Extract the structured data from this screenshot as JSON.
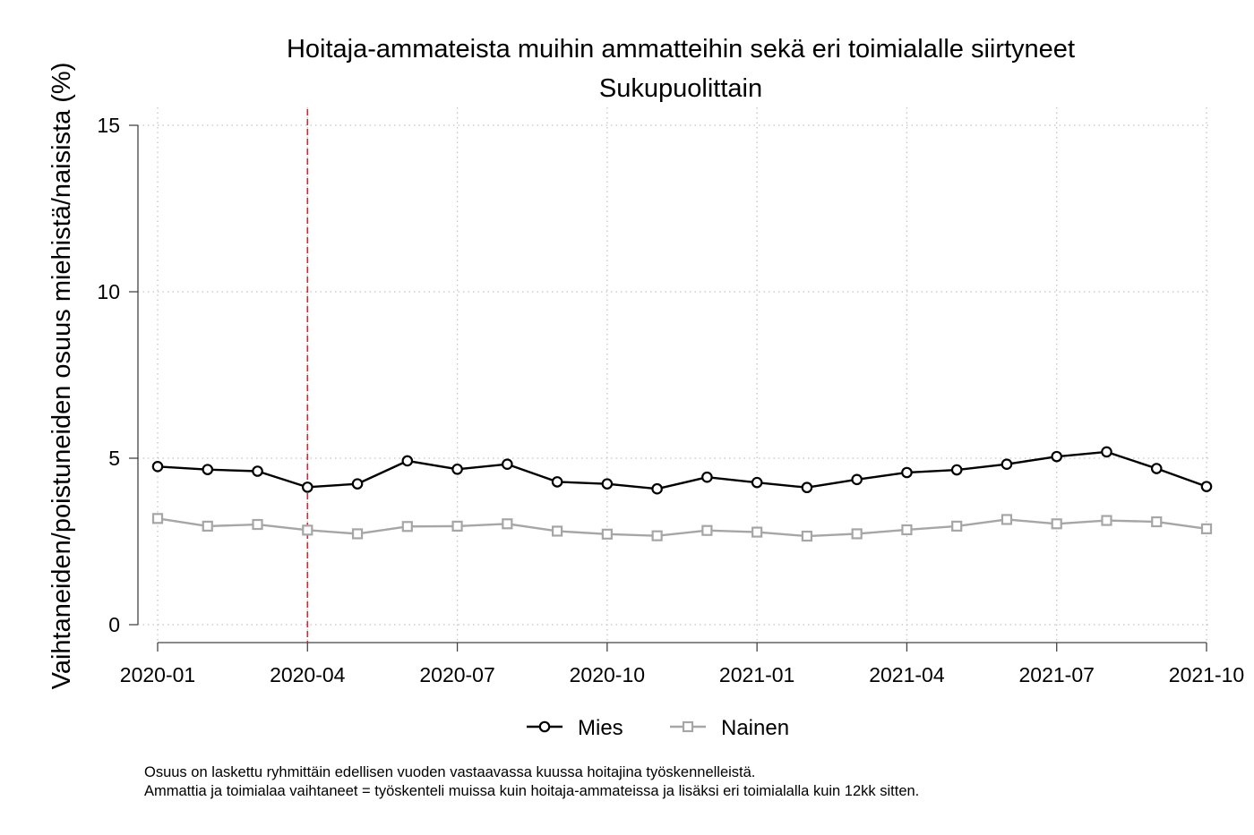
{
  "chart_data": {
    "type": "line",
    "title": "Hoitaja-ammateista muihin ammatteihin sekä eri toimialalle siirtyneet",
    "subtitle": "Sukupuolittain",
    "xlabel": "",
    "ylabel": "Vaihtaneiden/poistuneiden osuus miehistä/naisista (%)",
    "ylim": [
      0,
      15
    ],
    "yticks": [
      "0",
      "5",
      "10",
      "15"
    ],
    "xticks": [
      "2020-01",
      "2020-04",
      "2020-07",
      "2020-10",
      "2021-01",
      "2021-04",
      "2021-07",
      "2021-10"
    ],
    "x": [
      "2020-01",
      "2020-02",
      "2020-03",
      "2020-04",
      "2020-05",
      "2020-06",
      "2020-07",
      "2020-08",
      "2020-09",
      "2020-10",
      "2020-11",
      "2020-12",
      "2021-01",
      "2021-02",
      "2021-03",
      "2021-04",
      "2021-05",
      "2021-06",
      "2021-07",
      "2021-08",
      "2021-09",
      "2021-10"
    ],
    "series": [
      {
        "name": "Mies",
        "color": "#000000",
        "marker": "circle",
        "values": [
          4.75,
          4.66,
          4.61,
          4.13,
          4.23,
          4.92,
          4.67,
          4.82,
          4.29,
          4.23,
          4.08,
          4.43,
          4.27,
          4.12,
          4.36,
          4.57,
          4.65,
          4.82,
          5.05,
          5.19,
          4.69,
          4.15
        ]
      },
      {
        "name": "Nainen",
        "color": "#a6a6a6",
        "marker": "square",
        "values": [
          3.19,
          2.96,
          3.01,
          2.84,
          2.73,
          2.95,
          2.96,
          3.03,
          2.81,
          2.72,
          2.67,
          2.83,
          2.78,
          2.66,
          2.73,
          2.85,
          2.96,
          3.16,
          3.03,
          3.13,
          3.09,
          2.88
        ]
      }
    ],
    "reference_line": {
      "x": "2020-04",
      "color": "#ee1c25"
    },
    "grid": true,
    "legend_position": "bottom"
  },
  "notes": [
    "Osuus on laskettu ryhmittäin edellisen vuoden vastaavassa kuussa hoitajina työskennelleistä.",
    "Ammattia ja toimialaa vaihtaneet = työskenteli muissa kuin hoitaja-ammateissa ja lisäksi eri toimialalla kuin 12kk sitten."
  ]
}
